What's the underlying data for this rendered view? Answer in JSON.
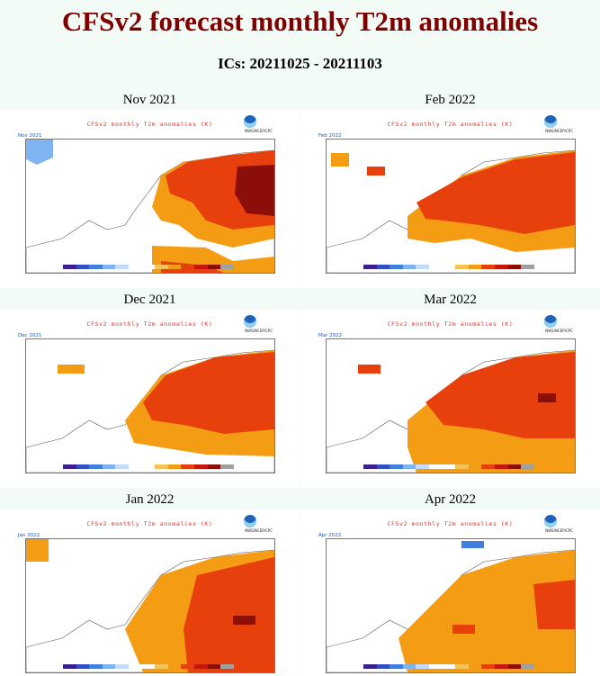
{
  "page": {
    "title": "CFSv2 forecast monthly T2m anomalies",
    "subtitle": "ICs: 20211025 - 20211103"
  },
  "panel_common": {
    "header": "CFSv2 monthly T2m anomalies (K)",
    "credit": "NWS/NCEP/CPC"
  },
  "palette": [
    "#3b1f8f",
    "#2e4fc7",
    "#3f7fe0",
    "#80b3f2",
    "#c4dcfb",
    "#ffffff",
    "#ffffff",
    "#f6c25a",
    "#f49d14",
    "#e8400c",
    "#c4190a",
    "#8b0e08",
    "#a0a0a0"
  ],
  "panels": [
    {
      "label": "Nov 2021",
      "month_short": "Nov 2021"
    },
    {
      "label": "Feb 2022",
      "month_short": "Feb 2022"
    },
    {
      "label": "Dec 2021",
      "month_short": "Dec 2021"
    },
    {
      "label": "Mar 2022",
      "month_short": "Mar 2022"
    },
    {
      "label": "Jan 2022",
      "month_short": "Jan 2022"
    },
    {
      "label": "Apr 2022",
      "month_short": "Apr 2022"
    }
  ]
}
